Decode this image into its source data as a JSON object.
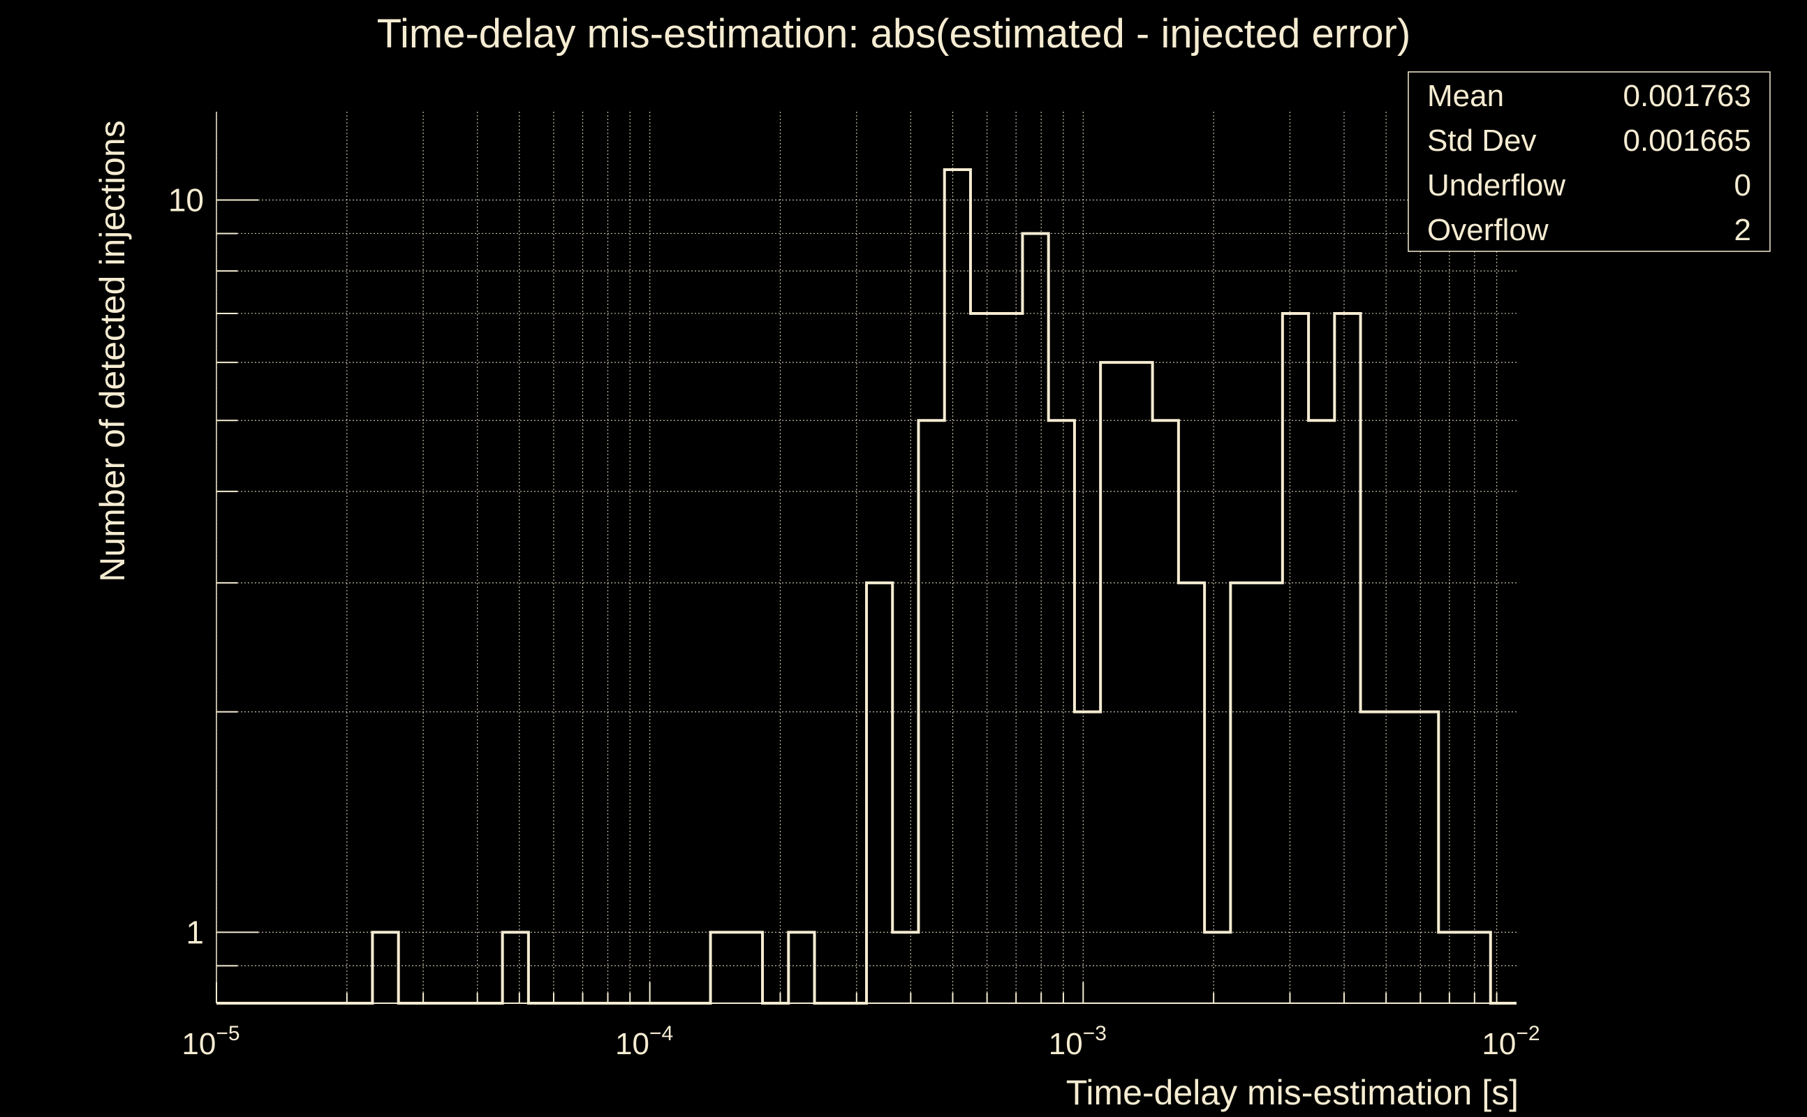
{
  "chart_data": {
    "type": "bar",
    "histogram": true,
    "title": "Time-delay mis-estimation: abs(estimated - injected error)",
    "xlabel": "Time-delay mis-estimation [s]",
    "ylabel": "Number of detected injections",
    "xscale": "log",
    "yscale": "log",
    "xlim": [
      1e-05,
      0.01
    ],
    "ylim": [
      0.8,
      13.2
    ],
    "x_tick_labels": [
      {
        "base": "10",
        "exp": "−5",
        "value": 1e-05
      },
      {
        "base": "10",
        "exp": "−4",
        "value": 0.0001
      },
      {
        "base": "10",
        "exp": "−3",
        "value": 0.001
      },
      {
        "base": "10",
        "exp": "−2",
        "value": 0.01
      }
    ],
    "y_tick_labels": [
      {
        "label": "1",
        "value": 1
      },
      {
        "label": "10",
        "value": 10
      }
    ],
    "grid": true,
    "n_bins": 50,
    "values": [
      0,
      0,
      0,
      0,
      0,
      0,
      1,
      0,
      0,
      0,
      0,
      1,
      0,
      0,
      0,
      0,
      0,
      0,
      0,
      1,
      1,
      0,
      1,
      0,
      0,
      3,
      1,
      5,
      11,
      7,
      7,
      9,
      5,
      2,
      6,
      6,
      5,
      3,
      1,
      3,
      3,
      7,
      5,
      7,
      2,
      2,
      2,
      1,
      1,
      0
    ],
    "color": "#f5ecd2",
    "background": "#000000",
    "stats": {
      "position": "top-right",
      "rows": [
        {
          "label": "Mean",
          "value": "0.001763"
        },
        {
          "label": "Std Dev",
          "value": "0.001665"
        },
        {
          "label": "Underflow",
          "value": "0"
        },
        {
          "label": "Overflow",
          "value": "2"
        }
      ]
    }
  }
}
